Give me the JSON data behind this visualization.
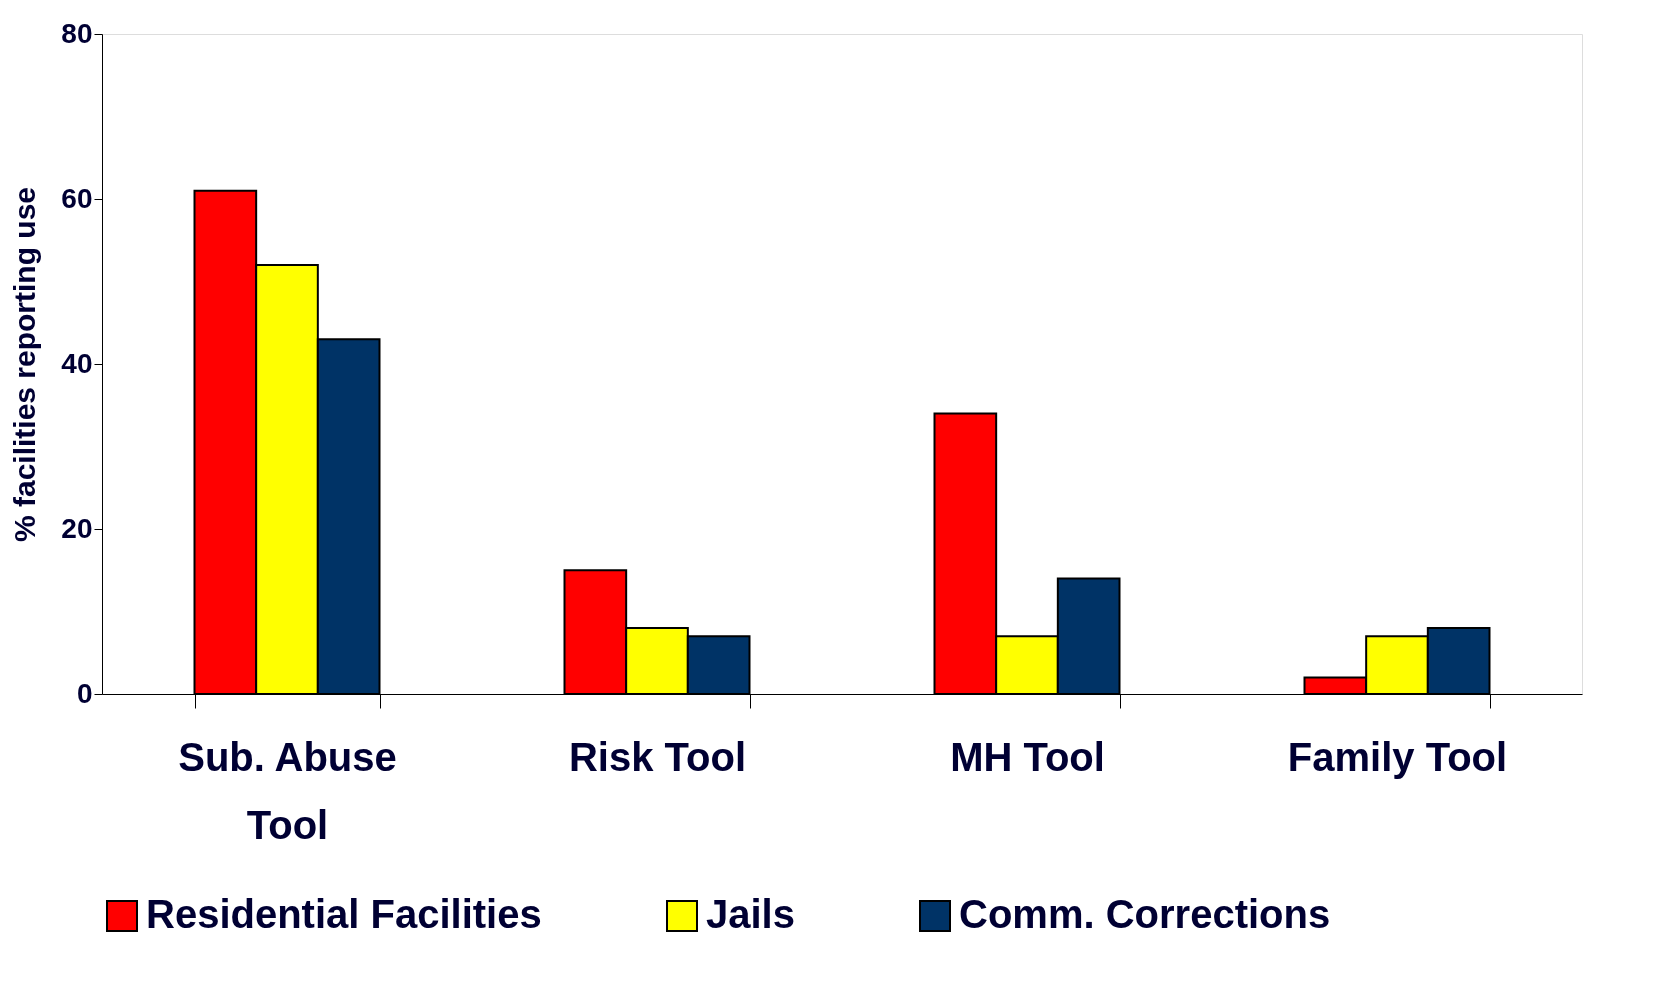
{
  "chart_data": {
    "type": "bar",
    "ylabel": "% facilities reporting use",
    "categories": [
      "Sub. Abuse Tool",
      "Risk Tool",
      "MH Tool",
      "Family Tool"
    ],
    "series": [
      {
        "name": "Residential Facilities",
        "color": "#ff0000",
        "values": [
          61,
          15,
          34,
          2
        ]
      },
      {
        "name": "Jails",
        "color": "#ffff00",
        "values": [
          52,
          8,
          7,
          7
        ]
      },
      {
        "name": "Comm. Corrections",
        "color": "#003366",
        "values": [
          43,
          7,
          14,
          8
        ]
      }
    ],
    "ylim": [
      0,
      80
    ],
    "yticks": [
      0,
      20,
      40,
      60,
      80
    ],
    "grid": false,
    "legend": "bottom"
  }
}
